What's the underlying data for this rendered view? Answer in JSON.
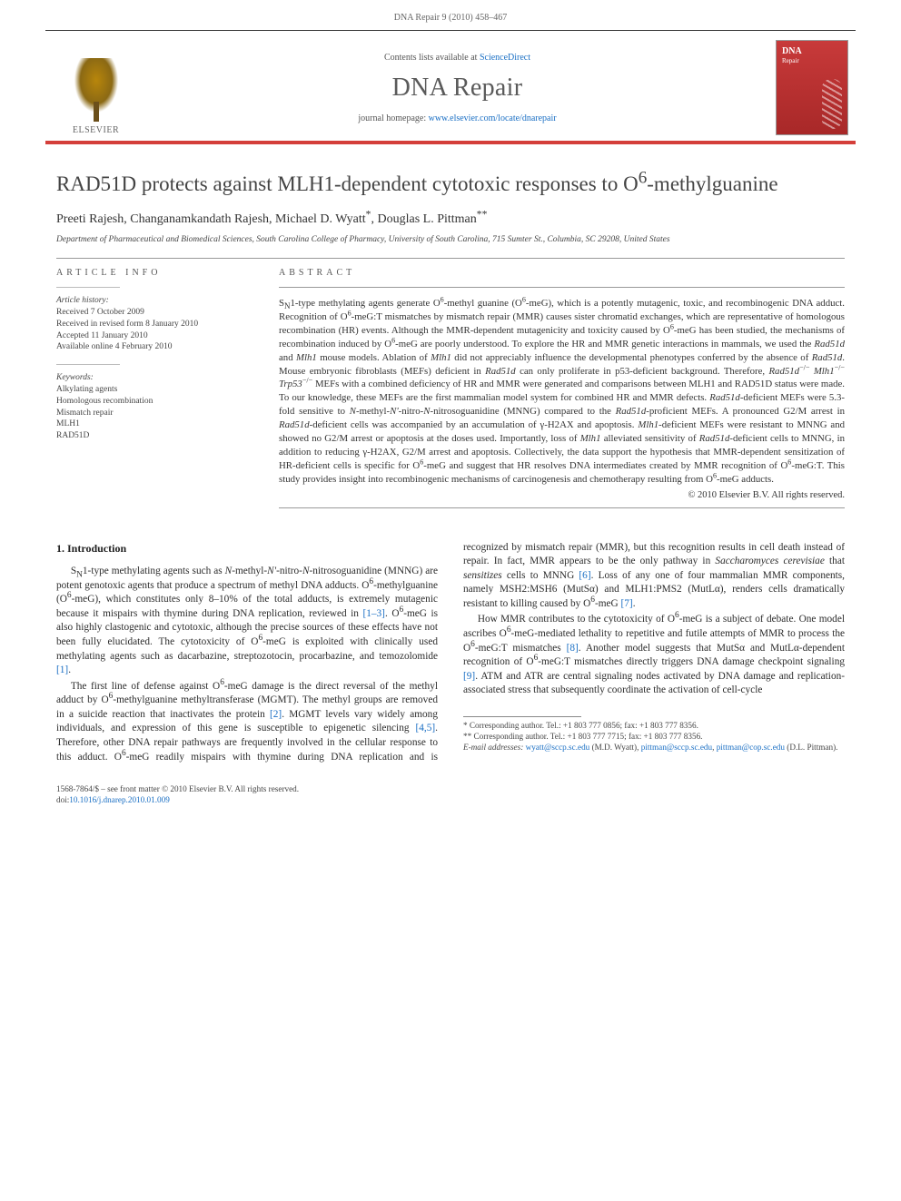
{
  "page": {
    "running_head": "DNA Repair 9 (2010) 458–467"
  },
  "banner": {
    "contents_prefix": "Contents lists available at ",
    "contents_link": "ScienceDirect",
    "journal": "DNA Repair",
    "homepage_prefix": "journal homepage: ",
    "homepage_url": "www.elsevier.com/locate/dnarepair",
    "publisher": "ELSEVIER",
    "cover_title": "DNA",
    "cover_sub": "Repair",
    "colors": {
      "rule_accent": "#d43f3a",
      "link": "#1a6fc4",
      "cover_bg_top": "#c83a3a",
      "cover_bg_bottom": "#a82828"
    }
  },
  "article": {
    "title_html": "RAD51D protects against MLH1-dependent cytotoxic responses to O<sup>6</sup>-methylguanine",
    "authors_html": "Preeti Rajesh, Changanamkandath Rajesh, Michael D. Wyatt<sup>*</sup>, Douglas L. Pittman<sup>**</sup>",
    "affiliation": "Department of Pharmaceutical and Biomedical Sciences, South Carolina College of Pharmacy, University of South Carolina, 715 Sumter St., Columbia, SC 29208, United States"
  },
  "info": {
    "label": "ARTICLE INFO",
    "history_head": "Article history:",
    "received": "Received 7 October 2009",
    "revised": "Received in revised form 8 January 2010",
    "accepted": "Accepted 11 January 2010",
    "online": "Available online 4 February 2010",
    "keywords_head": "Keywords:",
    "kw1": "Alkylating agents",
    "kw2": "Homologous recombination",
    "kw3": "Mismatch repair",
    "kw4": "MLH1",
    "kw5": "RAD51D"
  },
  "abstract": {
    "label": "ABSTRACT",
    "text_html": "S<sub>N</sub>1-type methylating agents generate O<sup>6</sup>-methyl guanine (O<sup>6</sup>-meG), which is a potently mutagenic, toxic, and recombinogenic DNA adduct. Recognition of O<sup>6</sup>-meG:T mismatches by mismatch repair (MMR) causes sister chromatid exchanges, which are representative of homologous recombination (HR) events. Although the MMR-dependent mutagenicity and toxicity caused by O<sup>6</sup>-meG has been studied, the mechanisms of recombination induced by O<sup>6</sup>-meG are poorly understood. To explore the HR and MMR genetic interactions in mammals, we used the <span class=\"ital\">Rad51d</span> and <span class=\"ital\">Mlh1</span> mouse models. Ablation of <span class=\"ital\">Mlh1</span> did not appreciably influence the developmental phenotypes conferred by the absence of <span class=\"ital\">Rad51d</span>. Mouse embryonic fibroblasts (MEFs) deficient in <span class=\"ital\">Rad51d</span> can only proliferate in p53-deficient background. Therefore, <span class=\"ital\">Rad51d</span><sup>−/−</sup> <span class=\"ital\">Mlh1</span><sup>−/−</sup> <span class=\"ital\">Trp53</span><sup>−/−</sup> MEFs with a combined deficiency of HR and MMR were generated and comparisons between MLH1 and RAD51D status were made. To our knowledge, these MEFs are the first mammalian model system for combined HR and MMR defects. <span class=\"ital\">Rad51d</span>-deficient MEFs were 5.3-fold sensitive to <span class=\"ital\">N</span>-methyl-<span class=\"ital\">N'</span>-nitro-<span class=\"ital\">N</span>-nitrosoguanidine (MNNG) compared to the <span class=\"ital\">Rad51d</span>-proficient MEFs. A pronounced G2/M arrest in <span class=\"ital\">Rad51d</span>-deficient cells was accompanied by an accumulation of γ-H2AX and apoptosis. <span class=\"ital\">Mlh1</span>-deficient MEFs were resistant to MNNG and showed no G2/M arrest or apoptosis at the doses used. Importantly, loss of <span class=\"ital\">Mlh1</span> alleviated sensitivity of <span class=\"ital\">Rad51d</span>-deficient cells to MNNG, in addition to reducing γ-H2AX, G2/M arrest and apoptosis. Collectively, the data support the hypothesis that MMR-dependent sensitization of HR-deficient cells is specific for O<sup>6</sup>-meG and suggest that HR resolves DNA intermediates created by MMR recognition of O<sup>6</sup>-meG:T. This study provides insight into recombinogenic mechanisms of carcinogenesis and chemotherapy resulting from O<sup>6</sup>-meG adducts.",
    "copyright": "© 2010 Elsevier B.V. All rights reserved."
  },
  "body": {
    "heading": "1. Introduction",
    "p1_html": "S<sub>N</sub>1-type methylating agents such as <span class=\"ital\">N</span>-methyl-<span class=\"ital\">N'</span>-nitro-<span class=\"ital\">N</span>-nitrosoguanidine (MNNG) are potent genotoxic agents that produce a spectrum of methyl DNA adducts. O<sup>6</sup>-methylguanine (O<sup>6</sup>-meG), which constitutes only 8–10% of the total adducts, is extremely mutagenic because it mispairs with thymine during DNA replication, reviewed in <a class=\"ref\" href=\"#\">[1–3]</a>. O<sup>6</sup>-meG is also highly clastogenic and cytotoxic, although the precise sources of these effects have not been fully elucidated. The cytotoxicity of O<sup>6</sup>-meG is exploited with clinically used methylating agents such as dacarbazine, streptozotocin, procarbazine, and temozolomide <a class=\"ref\" href=\"#\">[1]</a>.",
    "p2_html": "The first line of defense against O<sup>6</sup>-meG damage is the direct reversal of the methyl adduct by O<sup>6</sup>-methylguanine methyltransferase (MGMT). The methyl groups are removed in a suicide reaction that inactivates the protein <a class=\"ref\" href=\"#\">[2]</a>. MGMT levels vary widely among individuals, and expression of this gene is susceptible to epigenetic silencing <a class=\"ref\" href=\"#\">[4,5]</a>. Therefore, other DNA repair pathways are frequently involved in the cellular response to this adduct. O<sup>6</sup>-meG readily mispairs with thymine during DNA replication and is recognized by mismatch repair (MMR), but this recognition results in cell death instead of repair. In fact, MMR appears to be the only pathway in <span class=\"ital\">Saccharomyces cerevisiae</span> that <span class=\"ital\">sensitizes</span> cells to MNNG <a class=\"ref\" href=\"#\">[6]</a>. Loss of any one of four mammalian MMR components, namely MSH2:MSH6 (MutSα) and MLH1:PMS2 (MutLα), renders cells dramatically resistant to killing caused by O<sup>6</sup>-meG <a class=\"ref\" href=\"#\">[7]</a>.",
    "p3_html": "How MMR contributes to the cytotoxicity of O<sup>6</sup>-meG is a subject of debate. One model ascribes O<sup>6</sup>-meG-mediated lethality to repetitive and futile attempts of MMR to process the O<sup>6</sup>-meG:T mismatches <a class=\"ref\" href=\"#\">[8]</a>. Another model suggests that MutSα and MutLα-dependent recognition of O<sup>6</sup>-meG:T mismatches directly triggers DNA damage checkpoint signaling <a class=\"ref\" href=\"#\">[9]</a>. ATM and ATR are central signaling nodes activated by DNA damage and replication-associated stress that subsequently coordinate the activation of cell-cycle"
  },
  "footnotes": {
    "f1_html": "* Corresponding author. Tel.: +1 803 777 0856; fax: +1 803 777 8356.",
    "f2_html": "** Corresponding author. Tel.: +1 803 777 7715; fax: +1 803 777 8356.",
    "email_label": "E-mail addresses: ",
    "email1": "wyatt@sccp.sc.edu",
    "email1_who": " (M.D. Wyatt), ",
    "email2": "pittman@sccp.sc.edu",
    "email2_sep": ", ",
    "email3": "pittman@cop.sc.edu",
    "email3_who": " (D.L. Pittman)."
  },
  "bottom": {
    "issn_line": "1568-7864/$ – see front matter © 2010 Elsevier B.V. All rights reserved.",
    "doi_label": "doi:",
    "doi": "10.1016/j.dnarep.2010.01.009"
  }
}
